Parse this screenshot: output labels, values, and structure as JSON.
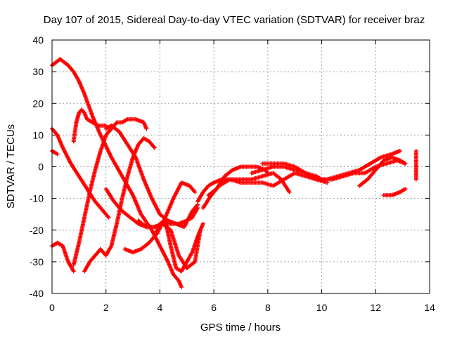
{
  "chart_data": {
    "type": "scatter",
    "title": "Day 107 of 2015, Sidereal Day-to-day VTEC variation (SDTVAR) for receiver braz",
    "xlabel": "GPS time / hours",
    "ylabel": "SDTVAR / TECUs",
    "xlim": [
      0,
      14
    ],
    "ylim": [
      -40,
      40
    ],
    "xticks": [
      0,
      2,
      4,
      6,
      8,
      10,
      12,
      14
    ],
    "yticks": [
      -40,
      -30,
      -20,
      -10,
      0,
      10,
      20,
      30,
      40
    ],
    "grid": true,
    "marker": "plus",
    "color": "#ff0000",
    "series": [
      {
        "x": [
          0.0,
          0.3,
          0.6,
          0.8,
          1.0,
          1.2,
          1.5,
          1.8,
          2.2,
          2.6,
          3.0,
          3.3,
          3.7,
          4.0,
          4.3,
          4.5,
          4.7,
          4.8
        ],
        "y": [
          32,
          34,
          32,
          30,
          27,
          23,
          16,
          10,
          3,
          -3,
          -9,
          -15,
          -20,
          -25,
          -30,
          -34,
          -36,
          -38
        ]
      },
      {
        "x": [
          0.8,
          0.9,
          1.0,
          1.1,
          1.2,
          1.3,
          1.5,
          1.7,
          2.0
        ],
        "y": [
          8,
          14,
          17,
          18,
          17,
          15,
          14,
          13,
          13
        ]
      },
      {
        "x": [
          0.0,
          0.2,
          0.4,
          0.7,
          1.0,
          1.3,
          1.6,
          1.9,
          2.1
        ],
        "y": [
          12,
          10,
          6,
          1,
          -3,
          -7,
          -11,
          -14,
          -16
        ]
      },
      {
        "x": [
          0.0,
          0.2
        ],
        "y": [
          5,
          4
        ]
      },
      {
        "x": [
          0.0,
          0.2,
          0.4,
          0.6,
          0.8
        ],
        "y": [
          -25,
          -24,
          -25,
          -30,
          -33
        ]
      },
      {
        "x": [
          0.8,
          1.0,
          1.2,
          1.4,
          1.6,
          1.8,
          2.0,
          2.2,
          2.4,
          2.6,
          2.8,
          3.1,
          3.4,
          3.5
        ],
        "y": [
          -31,
          -24,
          -16,
          -8,
          -1,
          5,
          10,
          12,
          14,
          14,
          15,
          15,
          14,
          12
        ]
      },
      {
        "x": [
          1.2,
          1.4,
          1.6,
          1.8,
          2.0,
          2.2,
          2.4,
          2.6,
          2.8,
          3.0,
          3.2,
          3.4,
          3.6,
          3.8
        ],
        "y": [
          -33,
          -30,
          -28,
          -26,
          -28,
          -25,
          -18,
          -10,
          -3,
          3,
          7,
          9,
          8,
          6
        ]
      },
      {
        "x": [
          2.0,
          2.2,
          2.5,
          2.8,
          3.1,
          3.4,
          3.7,
          4.0,
          4.3,
          4.6,
          4.9,
          5.2,
          5.4
        ],
        "y": [
          12,
          13,
          11,
          7,
          3,
          -4,
          -10,
          -15,
          -17,
          -18,
          -19,
          -14,
          -12
        ]
      },
      {
        "x": [
          2.0,
          2.3,
          2.6,
          2.9,
          3.2,
          3.5,
          3.8,
          4.1,
          4.4,
          4.7,
          5.0,
          5.2,
          5.4
        ],
        "y": [
          -7,
          -11,
          -14,
          -16,
          -18,
          -19,
          -19,
          -18,
          -18,
          -18,
          -17,
          -16,
          -13
        ]
      },
      {
        "x": [
          2.7,
          3.0,
          3.3,
          3.6,
          3.9,
          4.2,
          4.5,
          4.8,
          5.1,
          5.3
        ],
        "y": [
          -26,
          -27,
          -26,
          -24,
          -21,
          -16,
          -10,
          -5,
          -6,
          -8
        ]
      },
      {
        "x": [
          3.2,
          3.5,
          3.8,
          4.1,
          4.4,
          4.7,
          5.0,
          5.3,
          5.5
        ],
        "y": [
          -17,
          -19,
          -19,
          -18,
          -20,
          -28,
          -32,
          -30,
          -20
        ]
      },
      {
        "x": [
          3.8,
          4.0,
          4.2,
          4.4,
          4.6,
          4.8,
          5.0,
          5.2,
          5.4,
          5.6
        ],
        "y": [
          -22,
          -18,
          -17,
          -25,
          -32,
          -33,
          -30,
          -27,
          -22,
          -18
        ]
      },
      {
        "x": [
          5.4,
          5.6,
          5.8,
          6.0,
          6.3,
          6.6,
          7.0,
          7.4,
          7.8,
          8.2,
          8.5,
          8.8
        ],
        "y": [
          -11,
          -8,
          -6,
          -5,
          -4,
          -4,
          -4,
          -4,
          -3,
          -2,
          -4,
          -8
        ]
      },
      {
        "x": [
          5.6,
          5.9,
          6.2,
          6.6,
          7.0,
          7.4,
          7.8,
          8.2,
          8.6,
          9.0,
          9.4,
          9.8,
          10.2
        ],
        "y": [
          -13,
          -9,
          -6,
          -4,
          -5,
          -5,
          -5,
          -6,
          -4,
          -2,
          -3,
          -4,
          -5
        ]
      },
      {
        "x": [
          5.8,
          6.1,
          6.4,
          6.7,
          7.0,
          7.3,
          7.6,
          7.9,
          8.0
        ],
        "y": [
          -9,
          -7,
          -3,
          -1,
          0,
          0,
          0,
          -1,
          -2
        ]
      },
      {
        "x": [
          7.4,
          7.8,
          8.2,
          8.6,
          9.0,
          9.4,
          9.8,
          10.0,
          10.4,
          10.8,
          11.2,
          11.6,
          12.0,
          12.4,
          12.8,
          13.1
        ],
        "y": [
          -2,
          -1,
          0,
          0,
          -1,
          -2,
          -3,
          -4,
          -4,
          -3,
          -2,
          -2,
          0,
          1,
          2,
          1
        ]
      },
      {
        "x": [
          7.8,
          8.2,
          8.6,
          9.0,
          9.4,
          9.8,
          10.2,
          10.6,
          11.0,
          11.4,
          11.8,
          12.2,
          12.6,
          12.9
        ],
        "y": [
          1,
          1,
          1,
          0,
          -2,
          -4,
          -4,
          -3,
          -2,
          -1,
          1,
          3,
          4,
          5
        ]
      },
      {
        "x": [
          11.4,
          11.7,
          12.0,
          12.3,
          12.6,
          12.9,
          13.1
        ],
        "y": [
          -6,
          -4,
          -1,
          2,
          3,
          2,
          1
        ]
      },
      {
        "x": [
          12.3,
          12.6,
          12.9,
          13.1
        ],
        "y": [
          -9,
          -9,
          -8,
          -7
        ]
      },
      {
        "x": [
          13.5,
          13.5,
          13.5,
          13.5
        ],
        "y": [
          5,
          2,
          0,
          -4
        ]
      }
    ]
  }
}
